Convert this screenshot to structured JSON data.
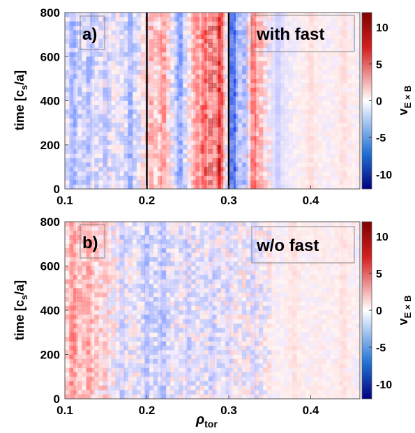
{
  "chart_data": [
    {
      "type": "heatmap",
      "panel_label": "a)",
      "annotation": "with fast",
      "xlabel": "ρ",
      "xlabel_sub": "tor",
      "ylabel": "time [c",
      "ylabel_sub": "s",
      "ylabel_tail": "/a]",
      "xlim": [
        0.1,
        0.46
      ],
      "ylim": [
        0,
        800
      ],
      "x_ticks": [
        0.1,
        0.2,
        0.3,
        0.4
      ],
      "x_tick_labels": [
        "0.1",
        "0.2",
        "0.3",
        "0.4"
      ],
      "y_ticks": [
        0,
        200,
        400,
        600,
        800
      ],
      "y_tick_labels": [
        "0",
        "200",
        "400",
        "600",
        "800"
      ],
      "vertical_lines_x": [
        0.2,
        0.3
      ],
      "colorbar": {
        "label": "v",
        "label_sub": "E × B",
        "range": [
          -12,
          12
        ],
        "ticks": [
          10,
          5,
          0,
          -5,
          -10
        ],
        "tick_labels": [
          "10",
          "5",
          "0",
          "-5",
          "-10"
        ]
      },
      "features": [
        {
          "x": 0.11,
          "v": -4
        },
        {
          "x": 0.13,
          "v": -3
        },
        {
          "x": 0.15,
          "v": -2
        },
        {
          "x": 0.18,
          "v": -4
        },
        {
          "x": 0.205,
          "v": 3
        },
        {
          "x": 0.22,
          "v": 5
        },
        {
          "x": 0.24,
          "v": -6
        },
        {
          "x": 0.26,
          "v": 4
        },
        {
          "x": 0.27,
          "v": 8
        },
        {
          "x": 0.29,
          "v": 11
        },
        {
          "x": 0.305,
          "v": -11
        },
        {
          "x": 0.32,
          "v": -5
        },
        {
          "x": 0.33,
          "v": 9
        },
        {
          "x": 0.36,
          "v": -2
        },
        {
          "x": 0.4,
          "v": 1
        },
        {
          "x": 0.44,
          "v": 1
        }
      ]
    },
    {
      "type": "heatmap",
      "panel_label": "b)",
      "annotation": "w/o fast",
      "xlabel": "ρ",
      "xlabel_sub": "tor",
      "ylabel": "time [c",
      "ylabel_sub": "s",
      "ylabel_tail": "/a]",
      "xlim": [
        0.1,
        0.46
      ],
      "ylim": [
        0,
        800
      ],
      "x_ticks": [
        0.1,
        0.2,
        0.3,
        0.4
      ],
      "x_tick_labels": [
        "0.1",
        "0.2",
        "0.3",
        "0.4"
      ],
      "y_ticks": [
        0,
        200,
        400,
        600,
        800
      ],
      "y_tick_labels": [
        "0",
        "200",
        "400",
        "600",
        "800"
      ],
      "vertical_lines_x": [],
      "colorbar": {
        "label": "v",
        "label_sub": "E × B",
        "range": [
          -12,
          12
        ],
        "ticks": [
          10,
          5,
          0,
          -5,
          -10
        ],
        "tick_labels": [
          "10",
          "5",
          "0",
          "-5",
          "-10"
        ]
      },
      "features": [
        {
          "x": 0.11,
          "v": 5
        },
        {
          "x": 0.13,
          "v": 4
        },
        {
          "x": 0.15,
          "v": 2
        },
        {
          "x": 0.17,
          "v": -2
        },
        {
          "x": 0.2,
          "v": -3
        },
        {
          "x": 0.22,
          "v": -3
        },
        {
          "x": 0.25,
          "v": -2
        },
        {
          "x": 0.28,
          "v": -2
        },
        {
          "x": 0.3,
          "v": -1
        },
        {
          "x": 0.33,
          "v": -1
        },
        {
          "x": 0.38,
          "v": 1
        },
        {
          "x": 0.44,
          "v": 1
        }
      ]
    }
  ]
}
